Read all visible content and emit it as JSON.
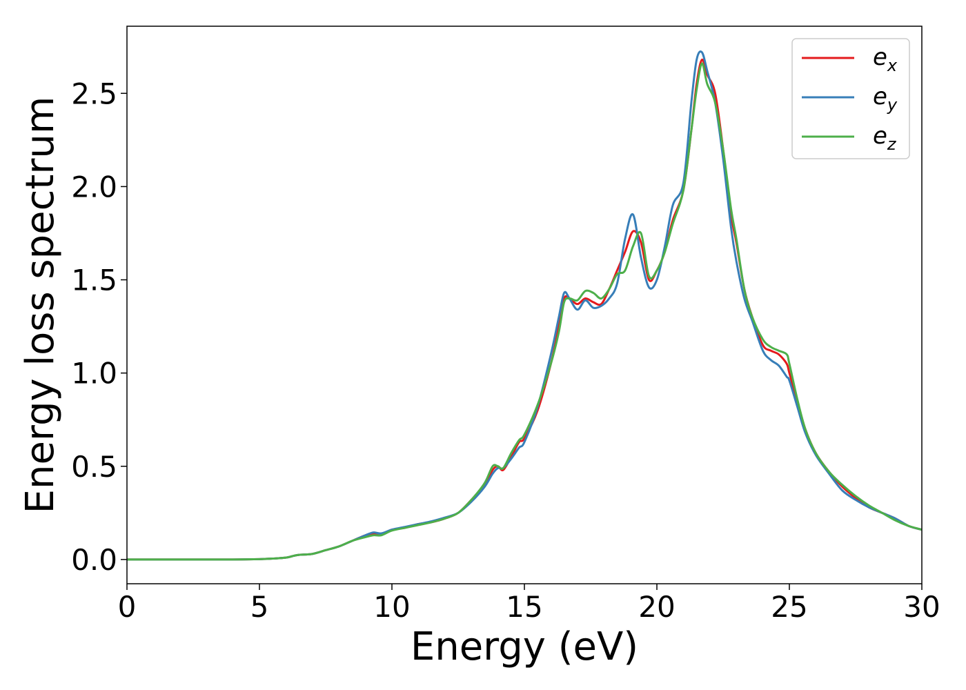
{
  "chart_data": {
    "type": "line",
    "xlabel": "Energy (eV)",
    "ylabel": "Energy loss spectrum",
    "xlim": [
      0,
      30
    ],
    "ylim": [
      -0.13,
      2.86
    ],
    "xticks": [
      0,
      5,
      10,
      15,
      20,
      25,
      30
    ],
    "yticks": [
      0.0,
      0.5,
      1.0,
      1.5,
      2.0,
      2.5
    ],
    "xtick_labels": [
      "0",
      "5",
      "10",
      "15",
      "20",
      "25",
      "30"
    ],
    "ytick_labels": [
      "0.0",
      "0.5",
      "1.0",
      "1.5",
      "2.0",
      "2.5"
    ],
    "grid": false,
    "legend_position": "top-right",
    "series": [
      {
        "name": "e_x",
        "label_base": "e",
        "label_sub": "x",
        "color": "#e41a1c",
        "x": [
          0,
          1,
          2,
          3,
          4,
          5,
          5.5,
          6,
          6.3,
          6.5,
          7,
          7.5,
          8,
          8.5,
          9,
          9.3,
          9.6,
          10,
          10.5,
          11,
          11.5,
          12,
          12.5,
          13,
          13.5,
          13.8,
          14,
          14.2,
          14.5,
          14.8,
          15,
          15.5,
          16,
          16.3,
          16.5,
          16.7,
          17,
          17.3,
          17.6,
          17.9,
          18.2,
          18.5,
          18.8,
          19.1,
          19.4,
          19.7,
          20,
          20.3,
          20.6,
          21,
          21.3,
          21.5,
          21.7,
          21.9,
          22.2,
          22.5,
          22.8,
          23,
          23.3,
          23.6,
          24,
          24.3,
          24.6,
          24.9,
          25,
          25.3,
          25.6,
          26,
          26.5,
          27,
          27.5,
          28,
          28.5,
          29,
          29.5,
          30
        ],
        "y": [
          0.0,
          0.0,
          0.0,
          0.0,
          0.0,
          0.002,
          0.005,
          0.01,
          0.02,
          0.025,
          0.03,
          0.05,
          0.07,
          0.1,
          0.13,
          0.14,
          0.135,
          0.16,
          0.17,
          0.19,
          0.2,
          0.22,
          0.25,
          0.32,
          0.4,
          0.48,
          0.5,
          0.48,
          0.55,
          0.63,
          0.65,
          0.8,
          1.05,
          1.25,
          1.4,
          1.4,
          1.37,
          1.4,
          1.38,
          1.37,
          1.45,
          1.55,
          1.65,
          1.76,
          1.7,
          1.5,
          1.55,
          1.65,
          1.82,
          1.98,
          2.3,
          2.55,
          2.68,
          2.6,
          2.5,
          2.2,
          1.85,
          1.7,
          1.45,
          1.3,
          1.15,
          1.12,
          1.1,
          1.05,
          1.0,
          0.85,
          0.7,
          0.57,
          0.47,
          0.39,
          0.33,
          0.28,
          0.25,
          0.22,
          0.18,
          0.16
        ]
      },
      {
        "name": "e_y",
        "label_base": "e",
        "label_sub": "y",
        "color": "#377eb8",
        "x": [
          0,
          1,
          2,
          3,
          4,
          5,
          5.5,
          6,
          6.3,
          6.5,
          7,
          7.5,
          8,
          8.5,
          9,
          9.3,
          9.6,
          10,
          10.5,
          11,
          11.5,
          12,
          12.5,
          13,
          13.5,
          13.8,
          14,
          14.2,
          14.5,
          14.8,
          15,
          15.5,
          16,
          16.3,
          16.5,
          16.7,
          17,
          17.3,
          17.6,
          17.9,
          18.2,
          18.5,
          18.8,
          19.1,
          19.4,
          19.7,
          20,
          20.3,
          20.6,
          21,
          21.3,
          21.5,
          21.7,
          21.9,
          22.2,
          22.5,
          22.8,
          23,
          23.3,
          23.6,
          24,
          24.3,
          24.6,
          24.9,
          25,
          25.3,
          25.6,
          26,
          26.5,
          27,
          27.5,
          28,
          28.5,
          29,
          29.5,
          30
        ],
        "y": [
          0.0,
          0.0,
          0.0,
          0.0,
          0.0,
          0.002,
          0.005,
          0.01,
          0.02,
          0.025,
          0.03,
          0.05,
          0.07,
          0.1,
          0.13,
          0.145,
          0.14,
          0.16,
          0.175,
          0.19,
          0.205,
          0.225,
          0.25,
          0.31,
          0.39,
          0.46,
          0.49,
          0.49,
          0.54,
          0.6,
          0.63,
          0.82,
          1.1,
          1.3,
          1.43,
          1.4,
          1.34,
          1.39,
          1.35,
          1.36,
          1.4,
          1.48,
          1.72,
          1.85,
          1.62,
          1.46,
          1.5,
          1.68,
          1.9,
          2.02,
          2.45,
          2.68,
          2.72,
          2.62,
          2.45,
          2.15,
          1.78,
          1.6,
          1.4,
          1.28,
          1.12,
          1.07,
          1.04,
          0.98,
          0.96,
          0.82,
          0.68,
          0.56,
          0.46,
          0.37,
          0.32,
          0.28,
          0.25,
          0.22,
          0.18,
          0.16
        ]
      },
      {
        "name": "e_z",
        "label_base": "e",
        "label_sub": "z",
        "color": "#4daf4a",
        "x": [
          0,
          1,
          2,
          3,
          4,
          5,
          5.5,
          6,
          6.3,
          6.5,
          7,
          7.5,
          8,
          8.5,
          9,
          9.3,
          9.6,
          10,
          10.5,
          11,
          11.5,
          12,
          12.5,
          13,
          13.5,
          13.8,
          14,
          14.2,
          14.5,
          14.8,
          15,
          15.5,
          16,
          16.3,
          16.5,
          16.7,
          17,
          17.3,
          17.6,
          17.9,
          18.2,
          18.5,
          18.8,
          19.1,
          19.4,
          19.7,
          20,
          20.3,
          20.6,
          21,
          21.3,
          21.5,
          21.7,
          21.9,
          22.2,
          22.5,
          22.8,
          23,
          23.3,
          23.6,
          24,
          24.3,
          24.6,
          24.9,
          25,
          25.3,
          25.6,
          26,
          26.5,
          27,
          27.5,
          28,
          28.5,
          29,
          29.5,
          30
        ],
        "y": [
          0.0,
          0.0,
          0.0,
          0.0,
          0.0,
          0.002,
          0.005,
          0.01,
          0.02,
          0.025,
          0.03,
          0.05,
          0.07,
          0.1,
          0.12,
          0.13,
          0.13,
          0.155,
          0.17,
          0.185,
          0.2,
          0.22,
          0.25,
          0.32,
          0.41,
          0.5,
          0.5,
          0.49,
          0.57,
          0.64,
          0.67,
          0.83,
          1.05,
          1.22,
          1.38,
          1.4,
          1.39,
          1.44,
          1.43,
          1.4,
          1.45,
          1.53,
          1.55,
          1.68,
          1.75,
          1.52,
          1.55,
          1.65,
          1.8,
          1.98,
          2.3,
          2.52,
          2.66,
          2.55,
          2.45,
          2.2,
          1.88,
          1.72,
          1.45,
          1.3,
          1.18,
          1.14,
          1.12,
          1.1,
          1.05,
          0.86,
          0.7,
          0.57,
          0.47,
          0.4,
          0.34,
          0.29,
          0.25,
          0.21,
          0.18,
          0.16
        ]
      }
    ]
  }
}
